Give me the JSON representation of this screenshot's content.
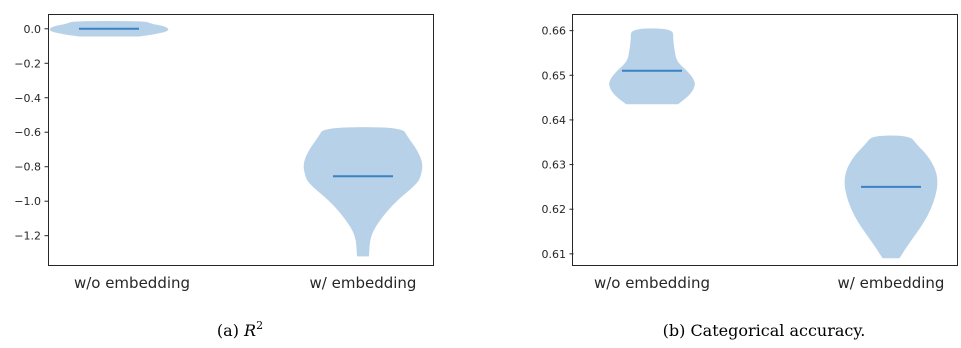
{
  "chart_data": [
    {
      "type": "violin",
      "caption_prefix": "(a) ",
      "caption_symbol": "R",
      "caption_superscript": "2",
      "categories": [
        "w/o embedding",
        "w/ embedding"
      ],
      "ylim": [
        -1.37,
        0.08
      ],
      "yticks": [
        0.0,
        -0.2,
        -0.4,
        -0.6,
        -0.8,
        -1.0,
        -1.2
      ],
      "ytick_labels": [
        "0.0",
        "−0.2",
        "−0.4",
        "−0.6",
        "−0.8",
        "−1.0",
        "−1.2"
      ],
      "violins": [
        {
          "category": "w/o embedding",
          "min": -0.045,
          "max": 0.045,
          "median": 0.0,
          "profile": [
            [
              -0.045,
              0.5
            ],
            [
              -0.03,
              0.8
            ],
            [
              -0.015,
              0.97
            ],
            [
              0.0,
              1.0
            ],
            [
              0.015,
              0.92
            ],
            [
              0.03,
              0.7
            ],
            [
              0.045,
              0.6
            ]
          ]
        },
        {
          "category": "w/ embedding",
          "min": -1.32,
          "max": -0.57,
          "median": -0.855,
          "profile": [
            [
              -1.32,
              0.1
            ],
            [
              -1.2,
              0.12
            ],
            [
              -1.1,
              0.3
            ],
            [
              -1.0,
              0.55
            ],
            [
              -0.9,
              0.9
            ],
            [
              -0.85,
              0.97
            ],
            [
              -0.78,
              1.0
            ],
            [
              -0.7,
              0.9
            ],
            [
              -0.63,
              0.75
            ],
            [
              -0.57,
              0.65
            ]
          ]
        }
      ]
    },
    {
      "type": "violin",
      "caption_prefix": "(b) ",
      "caption_text": "Categorical accuracy.",
      "categories": [
        "w/o embedding",
        "w/ embedding"
      ],
      "ylim": [
        0.6075,
        0.6635
      ],
      "yticks": [
        0.61,
        0.62,
        0.63,
        0.64,
        0.65,
        0.66
      ],
      "ytick_labels": [
        "0.61",
        "0.62",
        "0.63",
        "0.64",
        "0.65",
        "0.66"
      ],
      "violins": [
        {
          "category": "w/o embedding",
          "min": 0.6435,
          "max": 0.6605,
          "median": 0.651,
          "profile": [
            [
              0.6435,
              0.55
            ],
            [
              0.6455,
              0.8
            ],
            [
              0.6475,
              0.92
            ],
            [
              0.649,
              0.9
            ],
            [
              0.651,
              0.75
            ],
            [
              0.653,
              0.53
            ],
            [
              0.6555,
              0.48
            ],
            [
              0.658,
              0.45
            ],
            [
              0.6605,
              0.45
            ]
          ]
        },
        {
          "category": "w/ embedding",
          "min": 0.609,
          "max": 0.6365,
          "median": 0.625,
          "profile": [
            [
              0.609,
              0.18
            ],
            [
              0.611,
              0.3
            ],
            [
              0.614,
              0.5
            ],
            [
              0.617,
              0.7
            ],
            [
              0.62,
              0.85
            ],
            [
              0.623,
              0.95
            ],
            [
              0.626,
              1.0
            ],
            [
              0.629,
              0.95
            ],
            [
              0.632,
              0.78
            ],
            [
              0.6345,
              0.55
            ],
            [
              0.6365,
              0.4
            ]
          ]
        }
      ]
    }
  ]
}
